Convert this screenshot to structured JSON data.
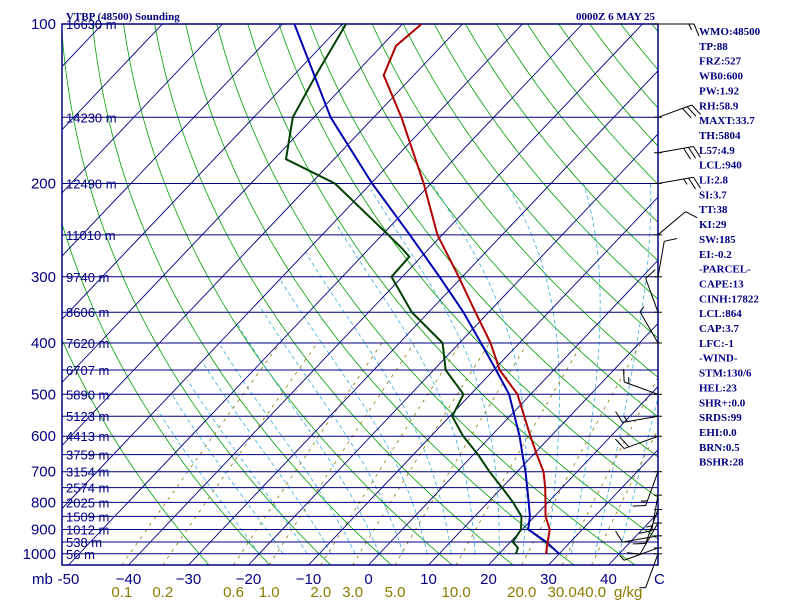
{
  "chart_data": {
    "type": "skew-t",
    "title_left": "VTBP (48500) Sounding",
    "title_right": "0000Z  6 MAY 25",
    "pressure_levels": [
      100,
      200,
      300,
      400,
      500,
      600,
      700,
      800,
      900,
      1000
    ],
    "pressure_tick_labels": [
      "100",
      "200",
      "300",
      "400",
      "500",
      "600",
      "700",
      "800",
      "900",
      "1000"
    ],
    "pressure_unit": "mb",
    "temperature_ticks": [
      -50,
      -40,
      -30,
      -20,
      -10,
      0,
      10,
      20,
      30,
      40
    ],
    "temperature_tick_labels": [
      "-50",
      "−40",
      "−30",
      "−20",
      "−10",
      "0",
      "10",
      "20",
      "30",
      "40"
    ],
    "temperature_unit": "C",
    "mixing_ratio_labels": [
      "0.1",
      "0.2",
      "0.6",
      "1.0",
      "2.0",
      "3.0",
      "5.0",
      "10.0",
      "20.0",
      "30.0",
      "40.0"
    ],
    "mixing_ratio_unit": "g/kg",
    "height_labels": [
      {
        "p": 100,
        "label": "16630 m"
      },
      {
        "p": 150,
        "label": "14230 m"
      },
      {
        "p": 200,
        "label": "12490 m"
      },
      {
        "p": 250,
        "label": "11010 m"
      },
      {
        "p": 300,
        "label": "9740 m"
      },
      {
        "p": 350,
        "label": "8606 m"
      },
      {
        "p": 400,
        "label": "7620 m"
      },
      {
        "p": 450,
        "label": "6707 m"
      },
      {
        "p": 500,
        "label": "5890 m"
      },
      {
        "p": 550,
        "label": "5123 m"
      },
      {
        "p": 600,
        "label": "4413 m"
      },
      {
        "p": 650,
        "label": "3759 m"
      },
      {
        "p": 700,
        "label": "3154 m"
      },
      {
        "p": 750,
        "label": "2574 m"
      },
      {
        "p": 800,
        "label": "2025 m"
      },
      {
        "p": 850,
        "label": "1509 m"
      },
      {
        "p": 900,
        "label": "1012 m"
      },
      {
        "p": 950,
        "label": "538 m"
      },
      {
        "p": 1000,
        "label": "56 m"
      }
    ],
    "temperature_profile": [
      {
        "p": 1000,
        "t": 27.8
      },
      {
        "p": 950,
        "t": 26.2
      },
      {
        "p": 900,
        "t": 24.6
      },
      {
        "p": 850,
        "t": 21.8
      },
      {
        "p": 800,
        "t": 19.6
      },
      {
        "p": 750,
        "t": 17.2
      },
      {
        "p": 700,
        "t": 14.4
      },
      {
        "p": 650,
        "t": 10.6
      },
      {
        "p": 600,
        "t": 6.6
      },
      {
        "p": 550,
        "t": 2.4
      },
      {
        "p": 500,
        "t": -2.2
      },
      {
        "p": 450,
        "t": -9.0
      },
      {
        "p": 400,
        "t": -14.8
      },
      {
        "p": 350,
        "t": -22.2
      },
      {
        "p": 300,
        "t": -30.6
      },
      {
        "p": 250,
        "t": -40.8
      },
      {
        "p": 200,
        "t": -51.2
      },
      {
        "p": 150,
        "t": -65.4
      },
      {
        "p": 125,
        "t": -75.0
      },
      {
        "p": 110,
        "t": -77.6
      },
      {
        "p": 100,
        "t": -76.8
      }
    ],
    "dewpoint_profile": [
      {
        "p": 1000,
        "td": 22.8
      },
      {
        "p": 975,
        "td": 22.2
      },
      {
        "p": 950,
        "td": 20.4
      },
      {
        "p": 900,
        "td": 19.8
      },
      {
        "p": 850,
        "td": 17.8
      },
      {
        "p": 800,
        "td": 14.2
      },
      {
        "p": 750,
        "td": 10.0
      },
      {
        "p": 700,
        "td": 5.4
      },
      {
        "p": 650,
        "td": 0.8
      },
      {
        "p": 600,
        "td": -4.6
      },
      {
        "p": 550,
        "td": -9.6
      },
      {
        "p": 500,
        "td": -11.2
      },
      {
        "p": 450,
        "td": -18.0
      },
      {
        "p": 400,
        "td": -22.8
      },
      {
        "p": 350,
        "td": -32.8
      },
      {
        "p": 300,
        "td": -41.8
      },
      {
        "p": 275,
        "td": -42.0
      },
      {
        "p": 265,
        "td": -44.6
      },
      {
        "p": 250,
        "td": -49.0
      },
      {
        "p": 200,
        "td": -66.0
      },
      {
        "p": 180,
        "td": -78.0
      },
      {
        "p": 150,
        "td": -83.5
      },
      {
        "p": 125,
        "td": -86.3
      },
      {
        "p": 100,
        "td": -89.4
      }
    ],
    "parcel_profile": [
      {
        "p": 1000,
        "t": 30.0
      },
      {
        "p": 950,
        "t": 26.0
      },
      {
        "p": 900,
        "t": 21.0
      },
      {
        "p": 850,
        "t": 19.2
      },
      {
        "p": 800,
        "t": 16.8
      },
      {
        "p": 750,
        "t": 14.2
      },
      {
        "p": 700,
        "t": 11.4
      },
      {
        "p": 650,
        "t": 8.2
      },
      {
        "p": 600,
        "t": 4.8
      },
      {
        "p": 550,
        "t": 0.8
      },
      {
        "p": 500,
        "t": -3.6
      },
      {
        "p": 450,
        "t": -9.6
      },
      {
        "p": 400,
        "t": -16.4
      },
      {
        "p": 350,
        "t": -24.2
      },
      {
        "p": 300,
        "t": -33.8
      },
      {
        "p": 250,
        "t": -45.4
      },
      {
        "p": 200,
        "t": -59.8
      },
      {
        "p": 150,
        "t": -77.2
      },
      {
        "p": 100,
        "t": -98.0
      }
    ],
    "wind_barbs": [
      {
        "p": 100,
        "dir": 90,
        "spd": 15
      },
      {
        "p": 150,
        "dir": 70,
        "spd": 30
      },
      {
        "p": 175,
        "dir": 80,
        "spd": 30
      },
      {
        "p": 200,
        "dir": 80,
        "spd": 25
      },
      {
        "p": 250,
        "dir": 50,
        "spd": 10
      },
      {
        "p": 300,
        "dir": 10,
        "spd": 10
      },
      {
        "p": 350,
        "dir": 340,
        "spd": 10
      },
      {
        "p": 400,
        "dir": 330,
        "spd": 5
      },
      {
        "p": 500,
        "dir": 290,
        "spd": 15
      },
      {
        "p": 550,
        "dir": 260,
        "spd": 15
      },
      {
        "p": 600,
        "dir": 250,
        "spd": 20
      },
      {
        "p": 700,
        "dir": 200,
        "spd": 15
      },
      {
        "p": 775,
        "dir": 190,
        "spd": 15
      },
      {
        "p": 825,
        "dir": 200,
        "spd": 10
      },
      {
        "p": 875,
        "dir": 210,
        "spd": 10
      },
      {
        "p": 925,
        "dir": 260,
        "spd": 10
      },
      {
        "p": 975,
        "dir": 250,
        "spd": 5
      },
      {
        "p": 1000,
        "dir": 200,
        "spd": 5
      }
    ],
    "colors": {
      "frame": "#000080",
      "isobar": "#000080",
      "isotherm": "#000080",
      "dry_adiabat": "#00a000",
      "moist_adiabat": "#3aaee0",
      "mixing_ratio": "#8b7a00",
      "temperature": "#b00000",
      "dewpoint": "#004000",
      "parcel": "#0000b0",
      "wind_barb": "#000000"
    }
  },
  "indices": [
    "WMO:48500",
    "TP:88",
    "FRZ:527",
    "WB0:600",
    "PW:1.92",
    "RH:58.9",
    "MAXT:33.7",
    "TH:5804",
    "L57:4.9",
    "LCL:940",
    "LI:2.8",
    "SI:3.7",
    "TT:38",
    "KI:29",
    "SW:185",
    "EI:-0.2",
    "-PARCEL-",
    "CAPE:13",
    "CINH:17822",
    "LCL:864",
    "CAP:3.7",
    "LFC:-1",
    "-WIND-",
    "STM:130/6",
    "HEL:23",
    "SHR+:0.0",
    "SRDS:99",
    "EHI:0.0",
    "BRN:0.5",
    "BSHR:28"
  ]
}
